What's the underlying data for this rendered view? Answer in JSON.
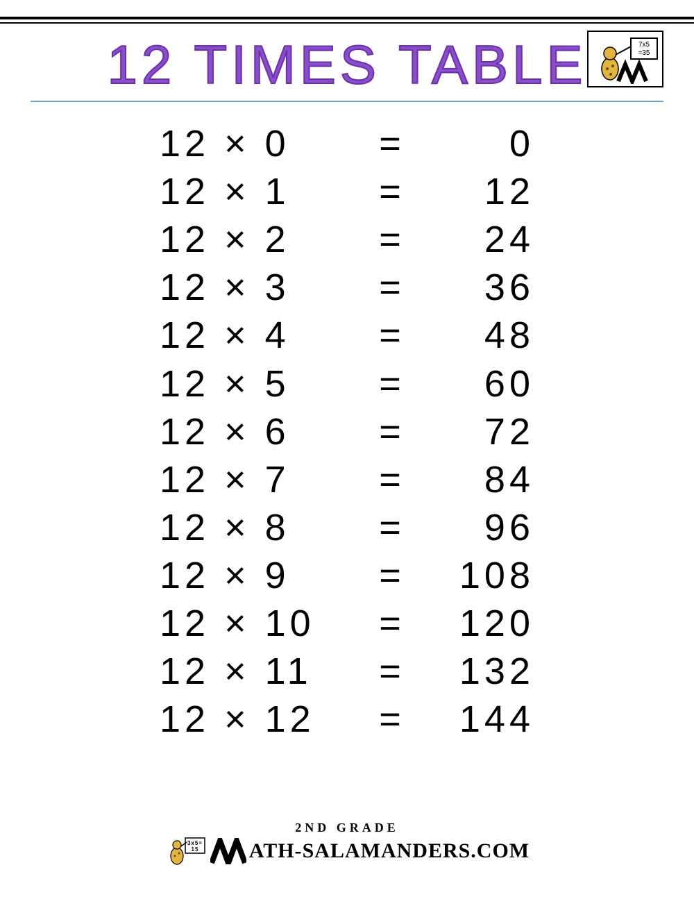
{
  "header": {
    "title": "12 TIMES TABLE",
    "title_color": "#8a4fc7",
    "title_stroke": "#6a2fb0",
    "underline_color": "#6fa3d8",
    "logo_card_text": "7x5\n=35"
  },
  "table": {
    "type": "multiplication-table",
    "multiplicand": 12,
    "font_size": 54,
    "letter_spacing": 6,
    "text_color": "#000000",
    "rows": [
      {
        "a": 12,
        "op": "×",
        "b": 0,
        "eq": "=",
        "result": 0
      },
      {
        "a": 12,
        "op": "×",
        "b": 1,
        "eq": "=",
        "result": 12
      },
      {
        "a": 12,
        "op": "×",
        "b": 2,
        "eq": "=",
        "result": 24
      },
      {
        "a": 12,
        "op": "×",
        "b": 3,
        "eq": "=",
        "result": 36
      },
      {
        "a": 12,
        "op": "×",
        "b": 4,
        "eq": "=",
        "result": 48
      },
      {
        "a": 12,
        "op": "×",
        "b": 5,
        "eq": "=",
        "result": 60
      },
      {
        "a": 12,
        "op": "×",
        "b": 6,
        "eq": "=",
        "result": 72
      },
      {
        "a": 12,
        "op": "×",
        "b": 7,
        "eq": "=",
        "result": 84
      },
      {
        "a": 12,
        "op": "×",
        "b": 8,
        "eq": "=",
        "result": 96
      },
      {
        "a": 12,
        "op": "×",
        "b": 9,
        "eq": "=",
        "result": 108
      },
      {
        "a": 12,
        "op": "×",
        "b": 10,
        "eq": "=",
        "result": 120
      },
      {
        "a": 12,
        "op": "×",
        "b": 11,
        "eq": "=",
        "result": 132
      },
      {
        "a": 12,
        "op": "×",
        "b": 12,
        "eq": "=",
        "result": 144
      }
    ]
  },
  "footer": {
    "grade_label": "2ND GRADE",
    "site_text": "ATH-SALAMANDERS.COM",
    "card_text": "3x5=\n15",
    "m_fill": "#000000"
  },
  "colors": {
    "background": "#ffffff",
    "rule": "#000000"
  }
}
